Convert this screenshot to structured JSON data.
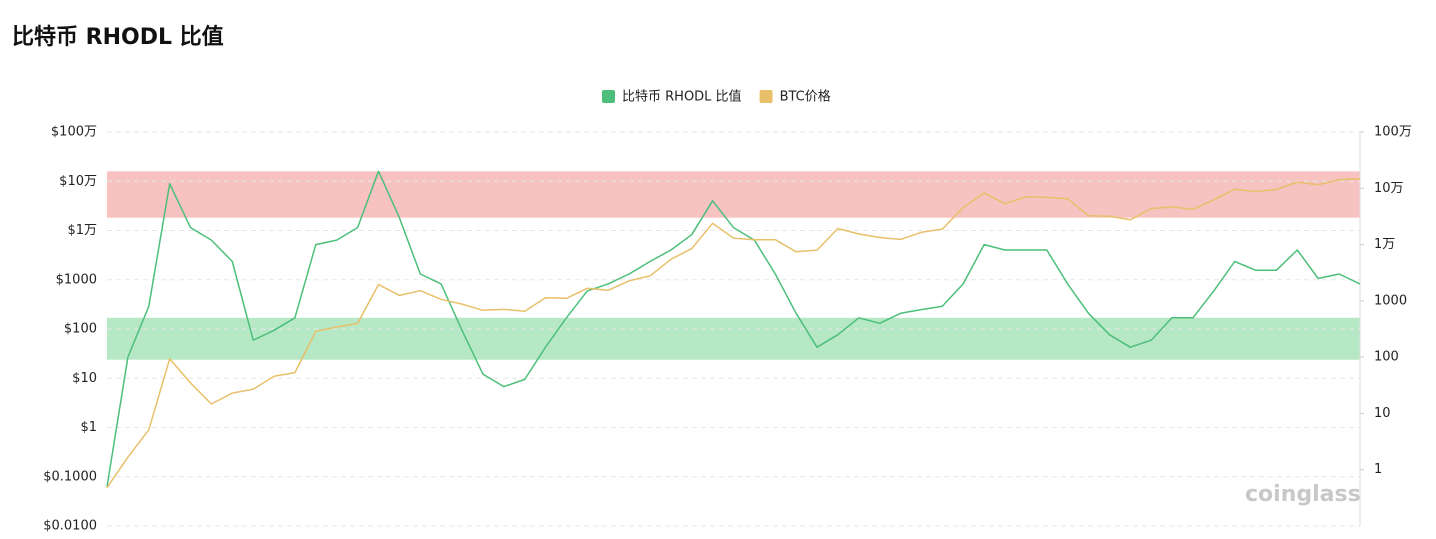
{
  "chart_data": {
    "type": "line",
    "title": "比特币 RHODL 比值",
    "watermark": "coinglass",
    "log_scale": true,
    "grid": true,
    "legend": "top",
    "ylim": [
      0.01,
      1000000
    ],
    "yticks": [
      {
        "value": 0.01,
        "label": "$0.0100"
      },
      {
        "value": 0.1,
        "label": "$0.1000"
      },
      {
        "value": 1,
        "label": "$1"
      },
      {
        "value": 10,
        "label": "$10"
      },
      {
        "value": 100,
        "label": "$100"
      },
      {
        "value": 1000,
        "label": "$1000"
      },
      {
        "value": 10000,
        "label": "$1万"
      },
      {
        "value": 100000,
        "label": "$10万"
      },
      {
        "value": 1000000,
        "label": "$100万"
      }
    ],
    "y2lim": [
      0.1,
      1000000
    ],
    "y2ticks": [
      1,
      10,
      100,
      1000,
      {
        "value": 10000,
        "label": "1万"
      },
      {
        "value": 100000,
        "label": "10万"
      },
      {
        "value": 1000000,
        "label": "100万"
      }
    ],
    "bands": [
      {
        "color": "#f7c2c0",
        "range": [
          30000,
          200000
        ],
        "axis": "y2"
      },
      {
        "color": "#b6e8c6",
        "range": [
          90,
          500
        ],
        "axis": "y2"
      }
    ],
    "series": [
      {
        "name": "比特币 RHODL 比值",
        "color": "#4cbf7a",
        "axis": "y2",
        "values": [
          0.5,
          100,
          800,
          120000,
          20000,
          12000,
          5000,
          200,
          300,
          500,
          10000,
          12000,
          20000,
          200000,
          30000,
          3000,
          2000,
          300,
          50,
          30,
          40,
          150,
          500,
          1500,
          2000,
          3000,
          5000,
          8000,
          15000,
          60000,
          20000,
          12000,
          3000,
          600,
          150,
          250,
          500,
          400,
          600,
          700,
          800,
          2000,
          10000,
          8000,
          8000,
          8000,
          2000,
          600,
          250,
          150,
          200,
          500,
          500,
          1500,
          5000,
          3500,
          3500,
          8000,
          2500,
          3000,
          2000
        ]
      },
      {
        "name": "BTC价格",
        "color": "#e8c06a",
        "values": [
          0.06,
          0.25,
          0.9,
          25,
          8,
          3,
          5,
          6,
          11,
          13,
          90,
          110,
          130,
          800,
          480,
          600,
          400,
          320,
          240,
          250,
          230,
          430,
          420,
          670,
          610,
          950,
          1200,
          2600,
          4300,
          14000,
          7000,
          6500,
          6500,
          3700,
          4000,
          11000,
          8500,
          7200,
          6600,
          9200,
          10700,
          29000,
          58000,
          35000,
          48000,
          47000,
          44000,
          20000,
          19500,
          16500,
          28000,
          30000,
          27000,
          42000,
          69000,
          62000,
          68000,
          96000,
          85000,
          107000,
          112000
        ]
      }
    ]
  }
}
